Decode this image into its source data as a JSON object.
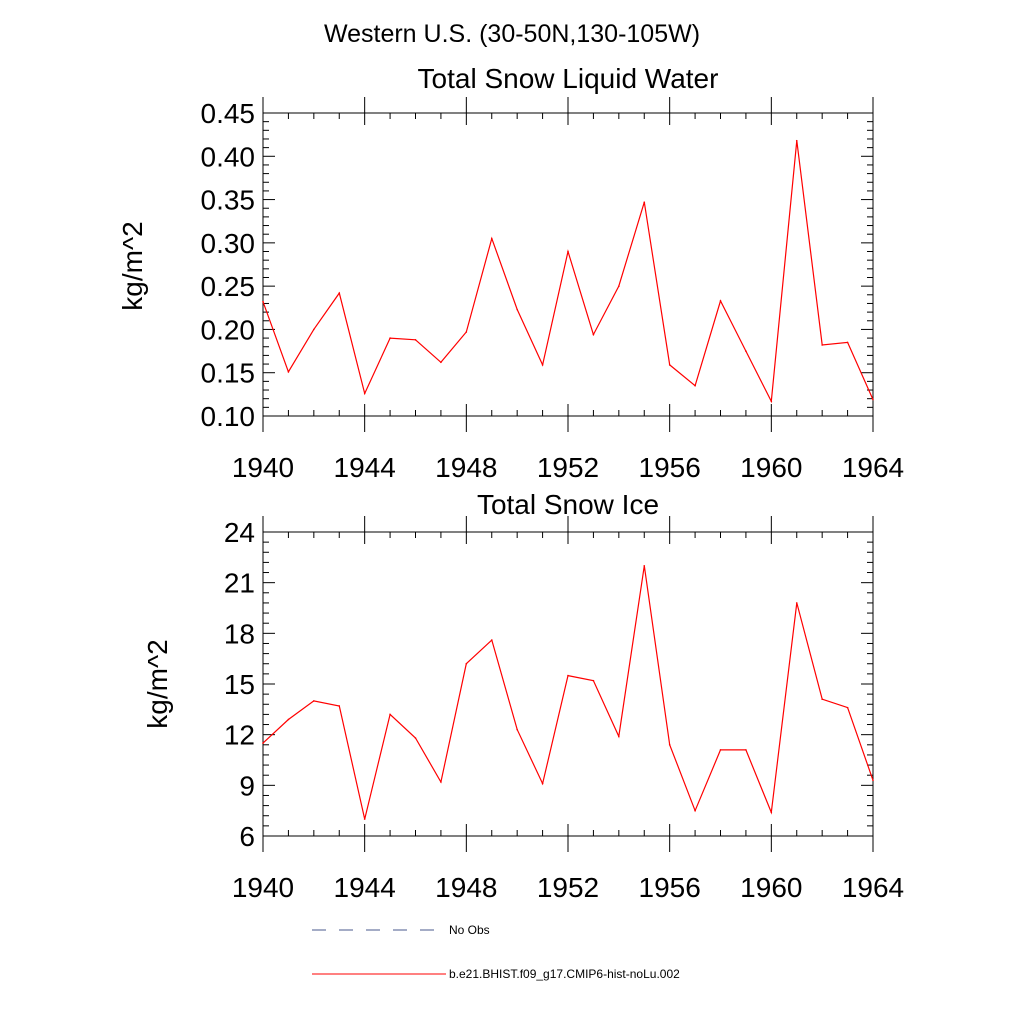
{
  "figure": {
    "suptitle": "Western U.S. (30-50N,130-105W)"
  },
  "chart_data": [
    {
      "type": "line",
      "title": "Total Snow Liquid Water",
      "ylabel": "kg/m^2",
      "xlabel": "",
      "xlim": [
        1940,
        1964
      ],
      "ylim": [
        0.1,
        0.45
      ],
      "xticks": [
        "1940",
        "1944",
        "1948",
        "1952",
        "1956",
        "1960",
        "1964"
      ],
      "yticks": [
        "0.10",
        "0.15",
        "0.20",
        "0.25",
        "0.30",
        "0.35",
        "0.40",
        "0.45"
      ],
      "grid": false,
      "series": [
        {
          "name": "b.e21.BHIST.f09_g17.CMIP6-hist-noLu.002",
          "color": "#ff0000",
          "x": [
            1940,
            1941,
            1942,
            1943,
            1944,
            1945,
            1946,
            1947,
            1948,
            1949,
            1950,
            1951,
            1952,
            1953,
            1954,
            1955,
            1956,
            1957,
            1958,
            1959,
            1960,
            1961,
            1962,
            1963,
            1964
          ],
          "values": [
            0.232,
            0.151,
            0.2,
            0.242,
            0.126,
            0.19,
            0.188,
            0.162,
            0.197,
            0.305,
            0.223,
            0.159,
            0.29,
            0.194,
            0.25,
            0.347,
            0.159,
            0.135,
            0.233,
            0.175,
            0.117,
            0.418,
            0.182,
            0.185,
            0.119
          ]
        }
      ]
    },
    {
      "type": "line",
      "title": "Total Snow Ice",
      "ylabel": "kg/m^2",
      "xlabel": "",
      "xlim": [
        1940,
        1964
      ],
      "ylim": [
        6,
        24
      ],
      "xticks": [
        "1940",
        "1944",
        "1948",
        "1952",
        "1956",
        "1960",
        "1964"
      ],
      "yticks": [
        "6",
        "9",
        "12",
        "15",
        "18",
        "21",
        "24"
      ],
      "grid": false,
      "series": [
        {
          "name": "b.e21.BHIST.f09_g17.CMIP6-hist-noLu.002",
          "color": "#ff0000",
          "x": [
            1940,
            1941,
            1942,
            1943,
            1944,
            1945,
            1946,
            1947,
            1948,
            1949,
            1950,
            1951,
            1952,
            1953,
            1954,
            1955,
            1956,
            1957,
            1958,
            1959,
            1960,
            1961,
            1962,
            1963,
            1964
          ],
          "values": [
            11.5,
            12.9,
            14.0,
            13.7,
            7.0,
            13.2,
            11.8,
            9.2,
            16.2,
            17.6,
            12.3,
            9.1,
            15.5,
            15.2,
            11.9,
            22.0,
            11.4,
            7.5,
            11.1,
            11.1,
            7.4,
            19.8,
            14.1,
            13.6,
            9.3
          ]
        }
      ]
    }
  ],
  "legend": [
    {
      "label": "No Obs",
      "color": "#4a5a8c",
      "style": "dashed"
    },
    {
      "label": "b.e21.BHIST.f09_g17.CMIP6-hist-noLu.002",
      "color": "#ff0000",
      "style": "solid"
    }
  ]
}
